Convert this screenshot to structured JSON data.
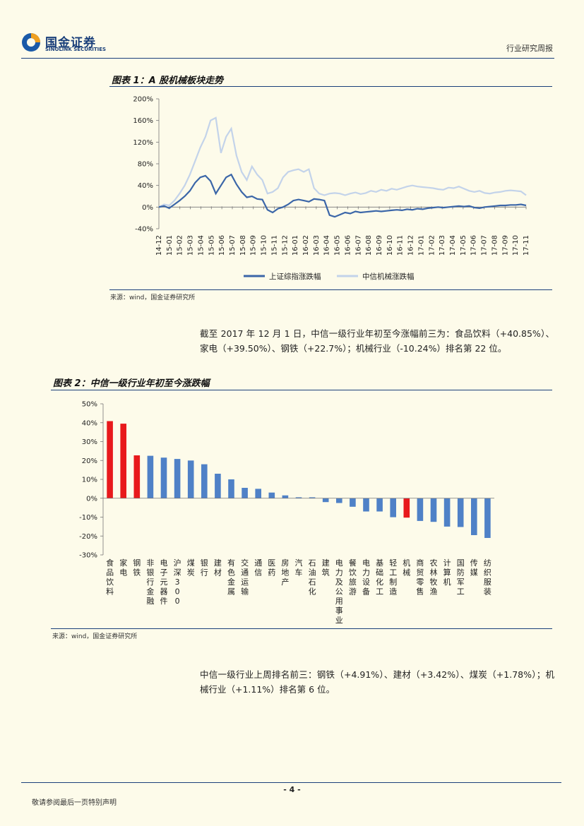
{
  "header": {
    "logo_cn": "国金证券",
    "logo_en": "SINOLINK SECURITIES",
    "report_type": "行业研究周报"
  },
  "figure1": {
    "title": "图表 1：A 股机械板块走势",
    "source": "来源：wind，国金证券研究所"
  },
  "paragraph1": "截至 2017 年 12 月 1 日，中信一级行业年初至今涨幅前三为：食品饮料（+40.85%）、家电（+39.50%）、钢铁（+22.7%）；机械行业（-10.24%）排名第 22 位。",
  "figure2": {
    "title": "图表 2：中信一级行业年初至今涨跌幅",
    "source": "来源：wind，国金证券研究所"
  },
  "paragraph2": "中信一级行业上周排名前三：钢铁（+4.91%）、建材（+3.42%）、煤炭（+1.78%）；机械行业（+1.11%）排名第 6 位。",
  "footer": {
    "page_no": "- 4 -",
    "disclaimer": "敬请参阅最后一页特别声明"
  },
  "colors": {
    "index_line": "#3b66a8",
    "machinery_line": "#c3d3ea",
    "bar_blue": "#4f81c7",
    "bar_red": "#e8191c"
  },
  "chart_data": [
    {
      "type": "line",
      "title": "图表 1：A 股机械板块走势",
      "x_ticks": [
        "14-12",
        "15-01",
        "15-02",
        "15-03",
        "15-04",
        "15-05",
        "15-06",
        "15-07",
        "15-08",
        "15-09",
        "15-10",
        "15-11",
        "15-12",
        "16-01",
        "16-02",
        "16-03",
        "16-04",
        "16-05",
        "16-06",
        "16-07",
        "16-08",
        "16-09",
        "16-10",
        "16-11",
        "16-12",
        "17-01",
        "17-02",
        "17-03",
        "17-04",
        "17-05",
        "17-06",
        "17-07",
        "17-08",
        "17-09",
        "17-10",
        "17-11"
      ],
      "y_ticks": [
        "200%",
        "160%",
        "120%",
        "80%",
        "40%",
        "0%",
        "-40%"
      ],
      "ylim": [
        -40,
        200
      ],
      "legend": [
        "上证综指涨跌幅",
        "中信机械涨跌幅"
      ],
      "series": [
        {
          "name": "上证综指涨跌幅",
          "values": [
            0,
            2,
            -2,
            5,
            12,
            20,
            30,
            45,
            55,
            58,
            48,
            25,
            40,
            55,
            60,
            42,
            28,
            18,
            20,
            15,
            14,
            -5,
            -10,
            -3,
            0,
            5,
            12,
            14,
            12,
            10,
            15,
            14,
            12,
            -15,
            -18,
            -14,
            -10,
            -12,
            -8,
            -10,
            -9,
            -8,
            -7,
            -8,
            -7,
            -6,
            -5,
            -6,
            -4,
            -5,
            -3,
            -4,
            -2,
            -1,
            0,
            -1,
            0,
            1,
            2,
            1,
            2,
            -1,
            -2,
            0,
            1,
            2,
            3,
            3,
            4,
            4,
            5,
            3
          ]
        },
        {
          "name": "中信机械涨跌幅",
          "values": [
            0,
            5,
            3,
            12,
            25,
            40,
            60,
            85,
            110,
            130,
            160,
            165,
            100,
            130,
            145,
            95,
            65,
            50,
            75,
            60,
            50,
            25,
            28,
            35,
            55,
            65,
            68,
            70,
            65,
            70,
            35,
            25,
            22,
            25,
            26,
            25,
            22,
            25,
            27,
            24,
            26,
            30,
            28,
            32,
            30,
            34,
            32,
            35,
            38,
            40,
            38,
            37,
            36,
            35,
            33,
            32,
            36,
            35,
            38,
            34,
            30,
            28,
            30,
            26,
            25,
            27,
            28,
            30,
            31,
            30,
            29,
            22
          ]
        }
      ]
    },
    {
      "type": "bar",
      "title": "图表 2：中信一级行业年初至今涨跌幅",
      "categories": [
        "食品饮料",
        "家电",
        "钢铁",
        "非银行金融",
        "电子元器件",
        "沪深300",
        "煤炭",
        "银行",
        "建材",
        "有色金属",
        "交通运输",
        "通信",
        "医药",
        "房地产",
        "汽车",
        "石油石化",
        "建筑",
        "电力及公用事业",
        "餐饮旅游",
        "电力设备",
        "基础化工",
        "轻工制造",
        "机械",
        "商贸零售",
        "农林牧渔",
        "计算机",
        "国防军工",
        "传媒",
        "纺织服装"
      ],
      "values": [
        40.85,
        39.5,
        22.7,
        22.5,
        21.5,
        20.8,
        20,
        18,
        13,
        10,
        5.5,
        5,
        3,
        1.5,
        0.5,
        0.5,
        -2,
        -2.5,
        -4.5,
        -7,
        -7,
        -10,
        -10.24,
        -12,
        -12.5,
        -15,
        -15.2,
        -19.5,
        -21
      ],
      "highlight": [
        "食品饮料",
        "家电",
        "钢铁",
        "机械"
      ],
      "y_ticks": [
        "50%",
        "40%",
        "30%",
        "20%",
        "10%",
        "0%",
        "-10%",
        "-20%",
        "-30%"
      ],
      "ylim": [
        -30,
        50
      ]
    }
  ]
}
